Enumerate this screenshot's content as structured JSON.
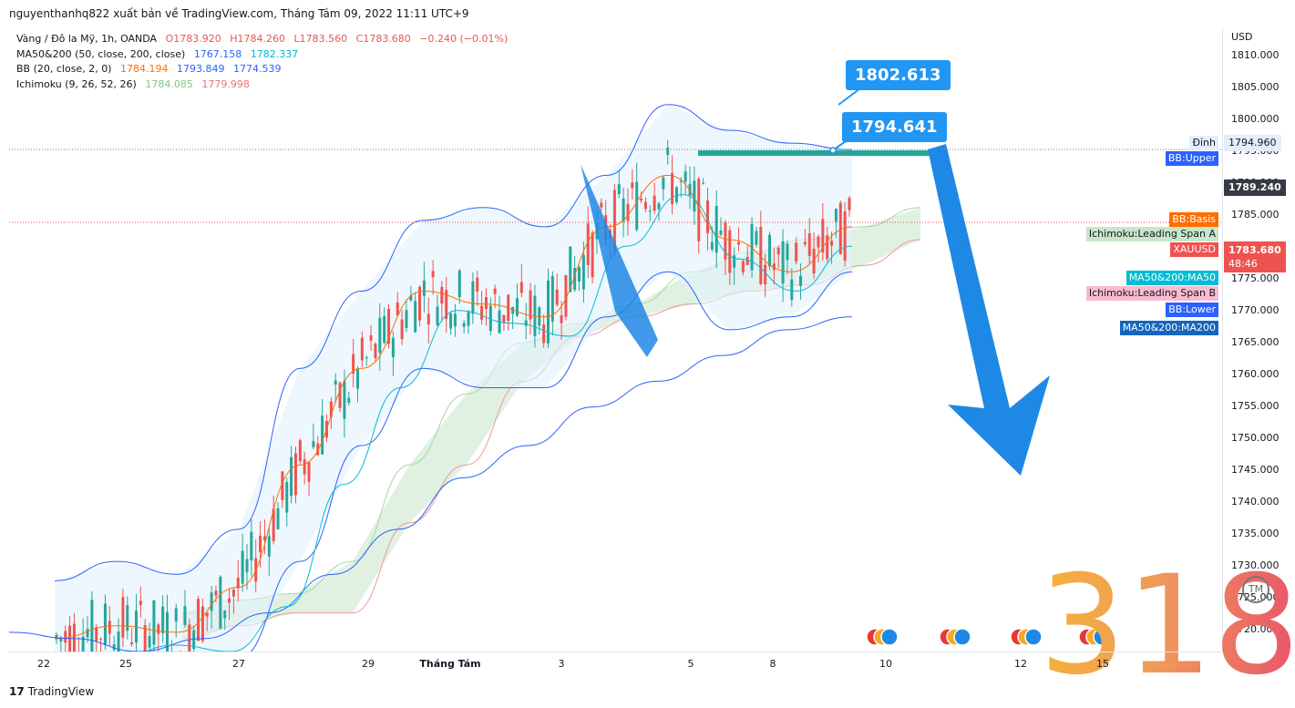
{
  "header": {
    "byline": "nguyenthanhq822 xuất bản về TradingView.com, Tháng Tám 09, 2022 11:11 UTC+9"
  },
  "legend": {
    "symbol": {
      "label": "Vàng / Đô la Mỹ, 1h, OANDA",
      "o": "O1783.920",
      "h": "H1784.260",
      "l": "L1783.560",
      "c": "C1783.680",
      "chg": "−0.240 (−0.01%)"
    },
    "ma": {
      "label": "MA50&200 (50, close, 200, close)",
      "v1": "1767.158",
      "v2": "1782.337"
    },
    "bb": {
      "label": "BB (20, close, 2, 0)",
      "v1": "1784.194",
      "v2": "1793.849",
      "v3": "1774.539"
    },
    "ichimoku": {
      "label": "Ichimoku (9, 26, 52, 26)",
      "v1": "1784.085",
      "v2": "1779.998"
    }
  },
  "axis": {
    "currency": "USD",
    "ticks": [
      "1810.000",
      "1805.000",
      "1800.000",
      "1795.000",
      "1790.000",
      "1785.000",
      "1780.000",
      "1775.000",
      "1770.000",
      "1765.000",
      "1760.000",
      "1755.000",
      "1750.000",
      "1745.000",
      "1740.000",
      "1735.000",
      "1730.000",
      "1725.000",
      "1720.000"
    ]
  },
  "badges": {
    "dinh": "Đỉnh",
    "dinh_value": "1794.960",
    "bb_upper": "BB:Upper",
    "bb_basis": "BB:Basis",
    "ichi_a": "Ichimoku:Leading Span A",
    "xauusd": "XAUUSD",
    "ma50": "MA50&200:MA50",
    "ichi_b": "Ichimoku:Leading Span B",
    "bb_lower": "BB:Lower",
    "ma200": "MA50&200:MA200",
    "price_1789": "1789.240",
    "price_last": "1783.680",
    "countdown": "48:46"
  },
  "time_ticks": [
    "22",
    "25",
    "27",
    "29",
    "Tháng Tám",
    "3",
    "5",
    "8",
    "10",
    "12",
    "15"
  ],
  "callouts": {
    "c1": "1802.613",
    "c2": "1794.641"
  },
  "overlay": {
    "number": "318",
    "tm": "TM"
  },
  "footer": {
    "logo": "17",
    "brand": "TradingView"
  },
  "colors": {
    "up": "#26a69a",
    "down": "#ef5350",
    "ma50": "#00bcd4",
    "ma200": "#2962ff",
    "bb_basis": "#ff6d00",
    "bb_band": "#2962ff",
    "span_a": "#a5d6a7",
    "span_b": "#ef9a9a",
    "arrow": "#1e88e5"
  },
  "chart_data": {
    "type": "candlestick",
    "ylim": [
      1716,
      1813
    ],
    "x": [
      "22",
      "25",
      "27",
      "29",
      "Tháng Tám",
      "3",
      "5",
      "8",
      "10",
      "12",
      "15"
    ],
    "bb_upper": [
      1727,
      1730,
      1728,
      1735,
      1760,
      1772,
      1783,
      1785,
      1782,
      1790,
      1801,
      1797,
      1795,
      1794
    ],
    "bb_basis": [
      1718,
      1720,
      1719,
      1726,
      1745,
      1760,
      1772,
      1770,
      1768,
      1782,
      1790,
      1780,
      1775,
      1782
    ],
    "bb_lower": [
      1712,
      1710,
      1710,
      1715,
      1730,
      1748,
      1760,
      1757,
      1757,
      1768,
      1775,
      1766,
      1768,
      1775
    ],
    "ma200": [
      1719,
      1718,
      1716,
      1718,
      1722,
      1728,
      1735,
      1743,
      1748,
      1754,
      1758,
      1762,
      1766,
      1768
    ],
    "resistance": 1794.6,
    "last_price": 1783.68
  }
}
